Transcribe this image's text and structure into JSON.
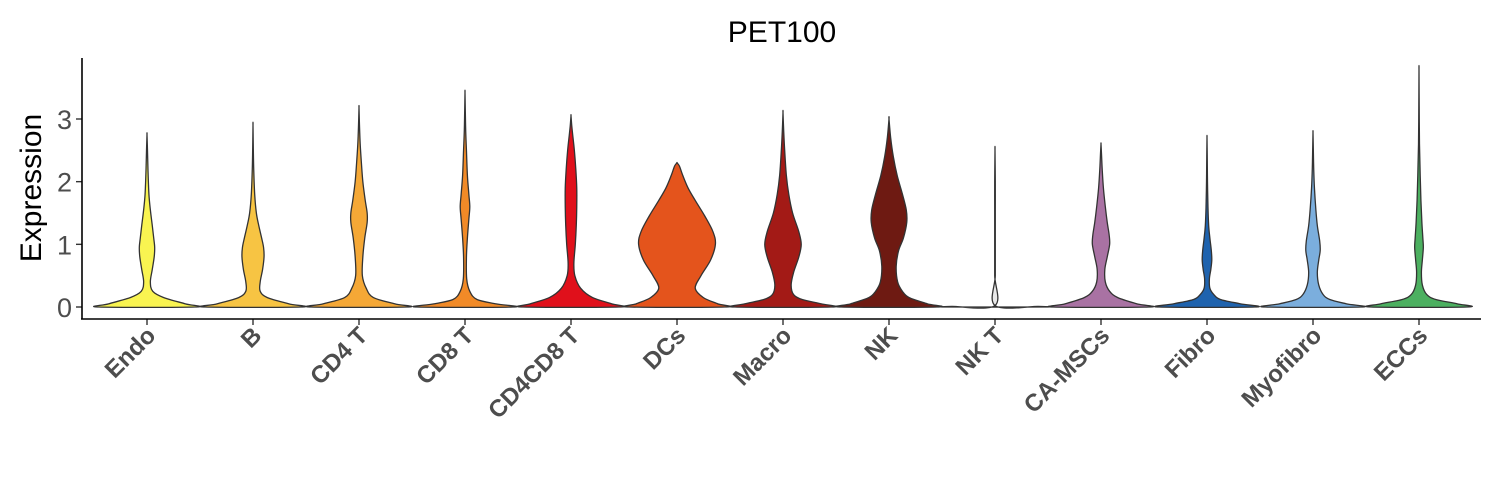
{
  "chart_data": {
    "type": "violin",
    "title": "PET100",
    "xlabel": "",
    "ylabel": "Expression",
    "ylim": [
      -0.18,
      3.9
    ],
    "yticks": [
      0,
      1,
      2,
      3
    ],
    "ytick_labels": [
      "0",
      "1",
      "2",
      "3"
    ],
    "legend": "none",
    "grid": false,
    "categories": [
      "Endo",
      "B",
      "CD4 T",
      "CD8 T",
      "CD4CD8 T",
      "DCs",
      "Macro",
      "NK",
      "NK T",
      "CA-MSCs",
      "Fibro",
      "Myofibro",
      "ECCs"
    ],
    "colors": [
      "#F9F451",
      "#F7C443",
      "#F5A836",
      "#F18A27",
      "#E0101B",
      "#E4541C",
      "#A31A16",
      "#6E1A12",
      "#E8E8E8",
      "#A972A3",
      "#1F63AE",
      "#7BAEDD",
      "#4CB060"
    ],
    "max_values": [
      2.75,
      2.9,
      3.18,
      3.42,
      3.05,
      2.3,
      3.1,
      3.0,
      2.5,
      2.6,
      2.7,
      2.78,
      3.78
    ],
    "series": [
      {
        "name": "Endo",
        "profile": [
          [
            0,
            1.0
          ],
          [
            0.05,
            0.8
          ],
          [
            0.15,
            0.35
          ],
          [
            0.25,
            0.12
          ],
          [
            0.4,
            0.07
          ],
          [
            0.6,
            0.11
          ],
          [
            0.8,
            0.15
          ],
          [
            0.95,
            0.16
          ],
          [
            1.1,
            0.14
          ],
          [
            1.3,
            0.11
          ],
          [
            1.55,
            0.07
          ],
          [
            1.8,
            0.04
          ],
          [
            2.2,
            0.02
          ],
          [
            2.5,
            0.01
          ],
          [
            2.75,
            0.0
          ]
        ]
      },
      {
        "name": "B",
        "profile": [
          [
            0,
            1.0
          ],
          [
            0.05,
            0.75
          ],
          [
            0.15,
            0.3
          ],
          [
            0.25,
            0.15
          ],
          [
            0.4,
            0.15
          ],
          [
            0.6,
            0.2
          ],
          [
            0.8,
            0.23
          ],
          [
            0.95,
            0.22
          ],
          [
            1.1,
            0.18
          ],
          [
            1.3,
            0.12
          ],
          [
            1.5,
            0.07
          ],
          [
            1.8,
            0.035
          ],
          [
            2.2,
            0.015
          ],
          [
            2.5,
            0.007
          ],
          [
            2.9,
            0.0
          ]
        ]
      },
      {
        "name": "CD4 T",
        "profile": [
          [
            0,
            1.0
          ],
          [
            0.05,
            0.75
          ],
          [
            0.15,
            0.3
          ],
          [
            0.3,
            0.15
          ],
          [
            0.5,
            0.07
          ],
          [
            0.8,
            0.08
          ],
          [
            1.1,
            0.12
          ],
          [
            1.35,
            0.17
          ],
          [
            1.5,
            0.17
          ],
          [
            1.7,
            0.13
          ],
          [
            2.0,
            0.08
          ],
          [
            2.3,
            0.05
          ],
          [
            2.6,
            0.025
          ],
          [
            2.9,
            0.01
          ],
          [
            3.18,
            0.0
          ]
        ]
      },
      {
        "name": "CD8 T",
        "profile": [
          [
            0,
            1.0
          ],
          [
            0.05,
            0.65
          ],
          [
            0.12,
            0.25
          ],
          [
            0.25,
            0.1
          ],
          [
            0.45,
            0.035
          ],
          [
            0.8,
            0.03
          ],
          [
            1.1,
            0.05
          ],
          [
            1.4,
            0.08
          ],
          [
            1.6,
            0.1
          ],
          [
            1.8,
            0.08
          ],
          [
            2.1,
            0.05
          ],
          [
            2.5,
            0.03
          ],
          [
            2.8,
            0.015
          ],
          [
            3.1,
            0.007
          ],
          [
            3.42,
            0.0
          ]
        ]
      },
      {
        "name": "CD4CD8 T",
        "profile": [
          [
            0,
            1.0
          ],
          [
            0.05,
            0.85
          ],
          [
            0.15,
            0.45
          ],
          [
            0.3,
            0.2
          ],
          [
            0.5,
            0.08
          ],
          [
            0.7,
            0.06
          ],
          [
            1.0,
            0.09
          ],
          [
            1.3,
            0.11
          ],
          [
            1.6,
            0.12
          ],
          [
            1.9,
            0.12
          ],
          [
            2.2,
            0.1
          ],
          [
            2.5,
            0.07
          ],
          [
            2.75,
            0.035
          ],
          [
            2.9,
            0.015
          ],
          [
            3.05,
            0.0
          ]
        ]
      },
      {
        "name": "DCs",
        "profile": [
          [
            0,
            1.0
          ],
          [
            0.05,
            0.85
          ],
          [
            0.15,
            0.55
          ],
          [
            0.3,
            0.38
          ],
          [
            0.5,
            0.5
          ],
          [
            0.75,
            0.7
          ],
          [
            1.0,
            0.8
          ],
          [
            1.2,
            0.75
          ],
          [
            1.45,
            0.58
          ],
          [
            1.7,
            0.38
          ],
          [
            1.9,
            0.23
          ],
          [
            2.1,
            0.12
          ],
          [
            2.25,
            0.05
          ],
          [
            2.3,
            0.0
          ]
        ]
      },
      {
        "name": "Macro",
        "profile": [
          [
            0,
            1.0
          ],
          [
            0.05,
            0.8
          ],
          [
            0.12,
            0.4
          ],
          [
            0.2,
            0.22
          ],
          [
            0.35,
            0.17
          ],
          [
            0.55,
            0.22
          ],
          [
            0.8,
            0.33
          ],
          [
            1.0,
            0.38
          ],
          [
            1.2,
            0.33
          ],
          [
            1.5,
            0.2
          ],
          [
            1.8,
            0.12
          ],
          [
            2.1,
            0.07
          ],
          [
            2.5,
            0.035
          ],
          [
            2.8,
            0.015
          ],
          [
            3.1,
            0.0
          ]
        ]
      },
      {
        "name": "NK",
        "profile": [
          [
            0,
            1.0
          ],
          [
            0.05,
            0.8
          ],
          [
            0.15,
            0.42
          ],
          [
            0.25,
            0.28
          ],
          [
            0.4,
            0.18
          ],
          [
            0.65,
            0.15
          ],
          [
            0.9,
            0.2
          ],
          [
            1.1,
            0.3
          ],
          [
            1.35,
            0.37
          ],
          [
            1.55,
            0.36
          ],
          [
            1.8,
            0.28
          ],
          [
            2.1,
            0.17
          ],
          [
            2.4,
            0.09
          ],
          [
            2.7,
            0.035
          ],
          [
            3.0,
            0.0
          ]
        ]
      },
      {
        "name": "NK T",
        "profile": [
          [
            0,
            1.0
          ],
          [
            0.01,
            0.9
          ],
          [
            0.02,
            0.006
          ],
          [
            0.5,
            0.006
          ],
          [
            1.0,
            0.006
          ],
          [
            1.5,
            0.006
          ],
          [
            2.0,
            0.006
          ],
          [
            2.5,
            0.0
          ]
        ]
      },
      {
        "name": "CA-MSCs",
        "profile": [
          [
            0,
            1.0
          ],
          [
            0.05,
            0.75
          ],
          [
            0.15,
            0.35
          ],
          [
            0.25,
            0.18
          ],
          [
            0.4,
            0.09
          ],
          [
            0.6,
            0.08
          ],
          [
            0.8,
            0.13
          ],
          [
            1.0,
            0.18
          ],
          [
            1.15,
            0.17
          ],
          [
            1.35,
            0.13
          ],
          [
            1.6,
            0.09
          ],
          [
            1.9,
            0.05
          ],
          [
            2.2,
            0.025
          ],
          [
            2.45,
            0.01
          ],
          [
            2.6,
            0.0
          ]
        ]
      },
      {
        "name": "Fibro",
        "profile": [
          [
            0,
            1.0
          ],
          [
            0.05,
            0.7
          ],
          [
            0.12,
            0.28
          ],
          [
            0.2,
            0.14
          ],
          [
            0.3,
            0.06
          ],
          [
            0.45,
            0.05
          ],
          [
            0.6,
            0.08
          ],
          [
            0.75,
            0.1
          ],
          [
            0.9,
            0.09
          ],
          [
            1.1,
            0.06
          ],
          [
            1.3,
            0.035
          ],
          [
            1.6,
            0.02
          ],
          [
            2.0,
            0.01
          ],
          [
            2.4,
            0.005
          ],
          [
            2.7,
            0.0
          ]
        ]
      },
      {
        "name": "Myofibro",
        "profile": [
          [
            0,
            1.0
          ],
          [
            0.05,
            0.7
          ],
          [
            0.12,
            0.35
          ],
          [
            0.2,
            0.21
          ],
          [
            0.35,
            0.12
          ],
          [
            0.55,
            0.09
          ],
          [
            0.75,
            0.12
          ],
          [
            0.9,
            0.15
          ],
          [
            1.05,
            0.14
          ],
          [
            1.3,
            0.09
          ],
          [
            1.55,
            0.06
          ],
          [
            1.9,
            0.03
          ],
          [
            2.2,
            0.015
          ],
          [
            2.5,
            0.007
          ],
          [
            2.78,
            0.0
          ]
        ]
      },
      {
        "name": "ECCs",
        "profile": [
          [
            0,
            1.0
          ],
          [
            0.05,
            0.8
          ],
          [
            0.12,
            0.35
          ],
          [
            0.2,
            0.16
          ],
          [
            0.35,
            0.07
          ],
          [
            0.55,
            0.05
          ],
          [
            0.75,
            0.07
          ],
          [
            0.95,
            0.09
          ],
          [
            1.1,
            0.08
          ],
          [
            1.35,
            0.06
          ],
          [
            1.7,
            0.04
          ],
          [
            2.1,
            0.025
          ],
          [
            2.6,
            0.01
          ],
          [
            3.2,
            0.004
          ],
          [
            3.78,
            0.0
          ]
        ]
      }
    ]
  }
}
